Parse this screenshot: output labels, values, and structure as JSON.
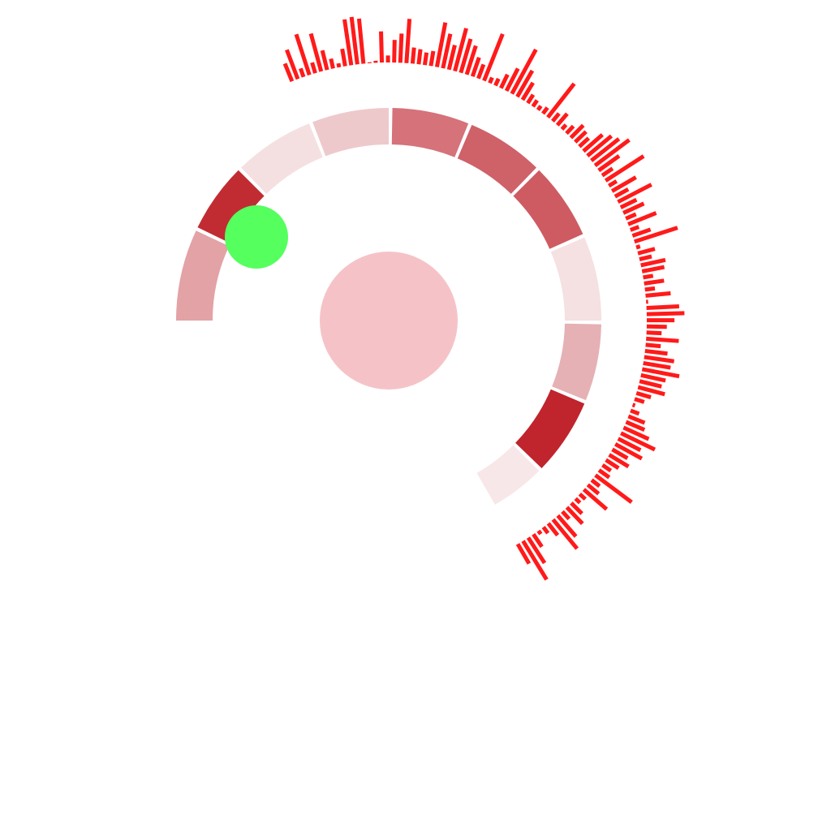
{
  "chart_data": {
    "type": "radial",
    "title": "",
    "center_circle": {
      "color": "#f5c3c7"
    },
    "marker": {
      "color": "#55ff5e"
    },
    "segments": [
      {
        "start_deg": -90,
        "end_deg": -65,
        "color": "#e3a2a6"
      },
      {
        "start_deg": -64,
        "end_deg": -45,
        "color": "#c12c33"
      },
      {
        "start_deg": -44,
        "end_deg": -22,
        "color": "#f5e0e1"
      },
      {
        "start_deg": -21,
        "end_deg": 0,
        "color": "#eec9cc"
      },
      {
        "start_deg": 1,
        "end_deg": 22,
        "color": "#d5727a"
      },
      {
        "start_deg": 23,
        "end_deg": 44,
        "color": "#cf6169"
      },
      {
        "start_deg": 45,
        "end_deg": 66,
        "color": "#ce5b62"
      },
      {
        "start_deg": 67,
        "end_deg": 90,
        "color": "#f5e0e2"
      },
      {
        "start_deg": 91,
        "end_deg": 112,
        "color": "#e5b1b4"
      },
      {
        "start_deg": 113,
        "end_deg": 134,
        "color": "#c0242c"
      },
      {
        "start_deg": 135,
        "end_deg": 150,
        "color": "#f7e7e8"
      }
    ],
    "bars": {
      "color": "#ff1a1a",
      "start_deg": -22,
      "end_deg": 150,
      "values": [
        0.38,
        0.62,
        0.18,
        0.85,
        0.22,
        0.78,
        0.4,
        0.2,
        0.08,
        0.35,
        0.92,
        0.95,
        0.9,
        0.02,
        0.04,
        0.62,
        0.14,
        0.45,
        0.58,
        0.88,
        0.32,
        0.3,
        0.25,
        0.3,
        0.9,
        0.7,
        0.5,
        0.88,
        0.7,
        0.6,
        0.4,
        0.3,
        1.0,
        0.12,
        0.15,
        0.3,
        0.5,
        1.0,
        0.6,
        0.4,
        0.2,
        0.15,
        0.1,
        0.15,
        0.85,
        0.2,
        0.3,
        0.12,
        0.2,
        0.35,
        0.3,
        0.25,
        0.5,
        0.62,
        0.7,
        0.85,
        0.5,
        0.25,
        0.9,
        0.18,
        0.55,
        0.3,
        0.75,
        0.35,
        0.45,
        0.22,
        0.6,
        0.18,
        0.38,
        0.9,
        0.08,
        0.35,
        0.25,
        0.5,
        0.45,
        0.2,
        0.4,
        0.2,
        0.5,
        0.04,
        0.65,
        0.75,
        0.55,
        0.4,
        0.3,
        0.65,
        0.3,
        0.45,
        0.6,
        0.55,
        0.75,
        0.5,
        0.45,
        0.55,
        0.3,
        0.2,
        0.05,
        0.18,
        0.35,
        0.4,
        0.55,
        0.75,
        0.5,
        0.6,
        0.35,
        0.45,
        0.3,
        0.2,
        0.25,
        0.9,
        0.2,
        0.28,
        0.6,
        0.15,
        0.12,
        0.3,
        0.45,
        0.2,
        0.55,
        0.75,
        0.3,
        0.15,
        0.08,
        0.3,
        0.6,
        0.9,
        0.45
      ]
    }
  }
}
